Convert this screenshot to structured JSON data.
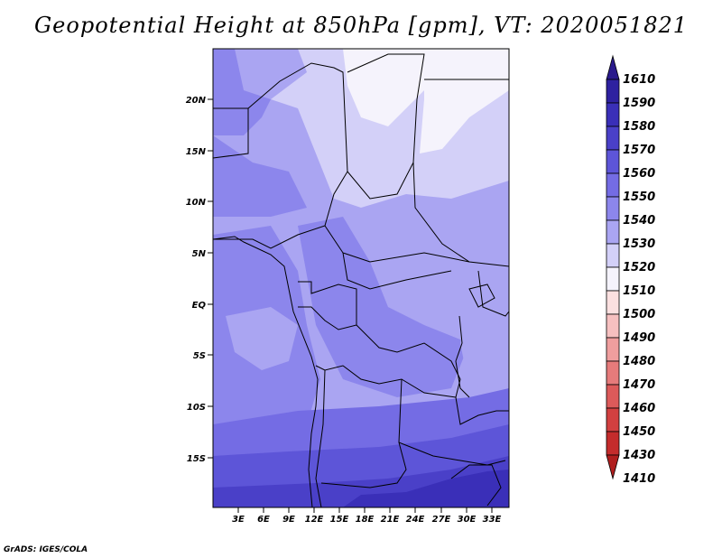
{
  "title": "Geopotential Height at 850hPa [gpm], VT: 2020051821",
  "credit": "GrADS: IGES/COLA",
  "map": {
    "lat_labels": [
      "20N",
      "15N",
      "10N",
      "5N",
      "EQ",
      "5S",
      "10S",
      "15S"
    ],
    "lon_labels": [
      "3E",
      "6E",
      "9E",
      "12E",
      "15E",
      "18E",
      "21E",
      "24E",
      "27E",
      "30E",
      "33E"
    ]
  },
  "colorbar": {
    "labels": [
      "1610",
      "1590",
      "1580",
      "1570",
      "1560",
      "1550",
      "1540",
      "1530",
      "1520",
      "1510",
      "1500",
      "1490",
      "1480",
      "1470",
      "1460",
      "1450",
      "1430",
      "1410"
    ],
    "colors": {
      "top_arrow": "#2a1a8c",
      "c1590": "#2e21a0",
      "c1580": "#3a2fb8",
      "c1570": "#4a40c8",
      "c1560": "#5d55d8",
      "c1550": "#746ce4",
      "c1540": "#8c86ec",
      "c1530": "#aaa5f2",
      "c1520": "#d3d0f8",
      "c1510": "#f5f3fc",
      "c1500": "#fbe0e0",
      "c1490": "#f6c0c0",
      "c1480": "#ef9e9e",
      "c1470": "#e67b7b",
      "c1460": "#dc5a5a",
      "c1450": "#d24040",
      "c1430": "#c42c2c",
      "bottom_arrow": "#b01e1e"
    }
  }
}
